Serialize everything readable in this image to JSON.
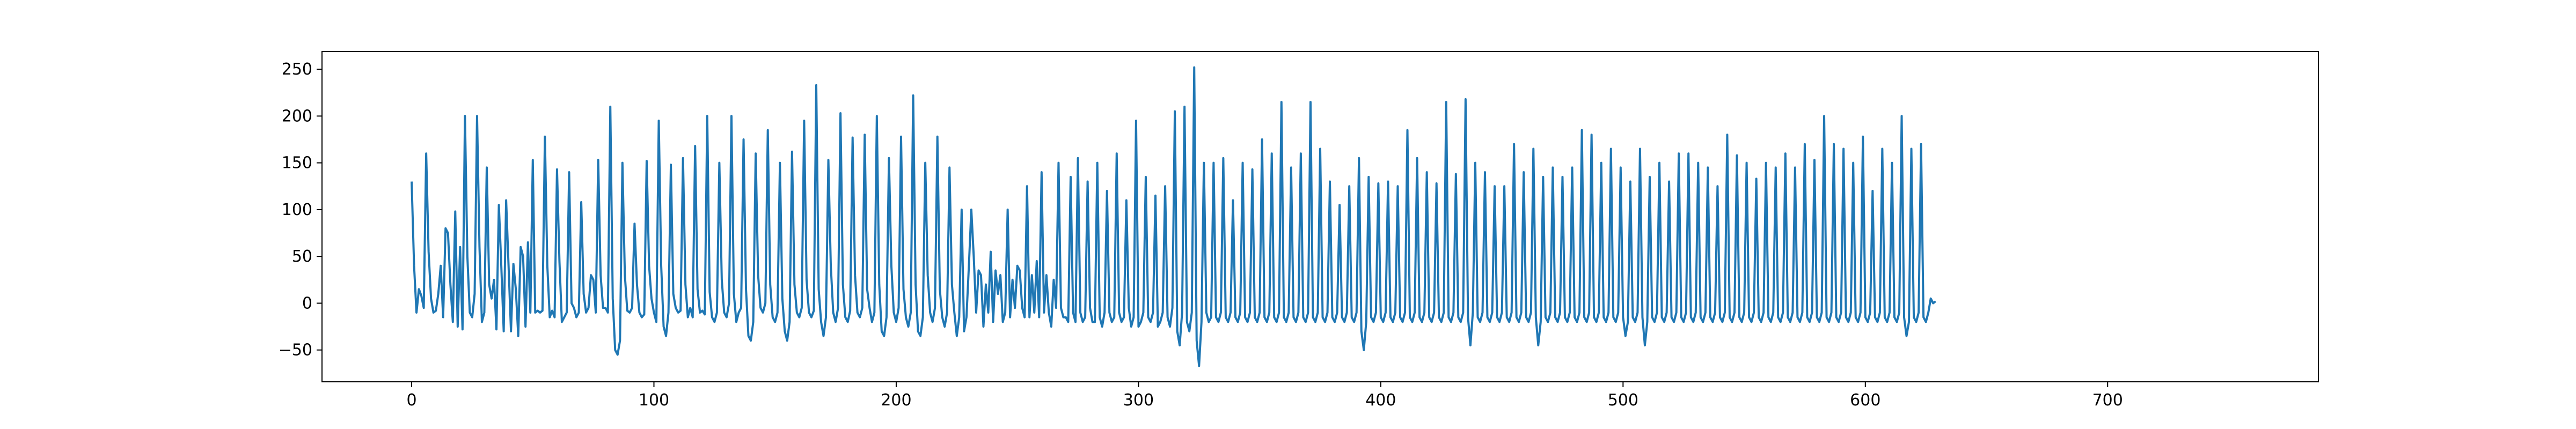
{
  "chart_data": {
    "type": "line",
    "title": "",
    "xlabel": "",
    "ylabel": "",
    "xlim": [
      -37,
      787
    ],
    "ylim": [
      -84,
      269
    ],
    "grid": false,
    "legend": "none",
    "x_ticks": [
      0,
      100,
      200,
      300,
      400,
      500,
      600,
      700
    ],
    "y_ticks": [
      -50,
      0,
      50,
      100,
      150,
      200,
      250
    ],
    "series": [
      {
        "color": "#1f77b4",
        "x_start": 0,
        "x_step": 1,
        "values": [
          130,
          40,
          -10,
          15,
          8,
          -5,
          160,
          55,
          5,
          -10,
          -8,
          10,
          40,
          -15,
          80,
          75,
          20,
          -20,
          98,
          -25,
          60,
          -28,
          200,
          50,
          -10,
          -15,
          10,
          200,
          60,
          -20,
          -10,
          145,
          20,
          5,
          25,
          -28,
          105,
          40,
          -30,
          110,
          40,
          -30,
          42,
          15,
          -35,
          60,
          50,
          -25,
          65,
          -10,
          153,
          -10,
          -8,
          -10,
          -8,
          178,
          40,
          -15,
          -8,
          -15,
          143,
          45,
          -20,
          -15,
          -10,
          140,
          0,
          -5,
          -15,
          -10,
          108,
          10,
          -10,
          -5,
          30,
          25,
          -10,
          153,
          30,
          -5,
          -5,
          -10,
          210,
          5,
          -50,
          -55,
          -40,
          150,
          30,
          -8,
          -10,
          -5,
          85,
          20,
          -10,
          -15,
          -12,
          152,
          40,
          5,
          -10,
          -20,
          195,
          40,
          -25,
          -35,
          -10,
          148,
          10,
          -5,
          -10,
          -8,
          155,
          20,
          -15,
          -5,
          -15,
          168,
          15,
          -10,
          -8,
          -12,
          200,
          12,
          -15,
          -20,
          -10,
          150,
          25,
          -10,
          -15,
          0,
          200,
          10,
          -20,
          -10,
          -5,
          175,
          15,
          -35,
          -40,
          -20,
          160,
          30,
          -5,
          -10,
          0,
          185,
          20,
          -15,
          -20,
          -10,
          150,
          5,
          -30,
          -40,
          -20,
          162,
          20,
          -10,
          -15,
          -5,
          195,
          25,
          -10,
          -15,
          -8,
          233,
          15,
          -20,
          -35,
          -15,
          153,
          40,
          -10,
          -20,
          -5,
          203,
          20,
          -15,
          -20,
          -8,
          177,
          30,
          -10,
          -15,
          -5,
          180,
          15,
          -5,
          -20,
          -10,
          200,
          20,
          -30,
          -35,
          -15,
          155,
          40,
          -10,
          -20,
          -5,
          178,
          15,
          -15,
          -25,
          -10,
          222,
          20,
          -30,
          -35,
          -15,
          150,
          30,
          -10,
          -20,
          -5,
          178,
          15,
          -15,
          -25,
          -10,
          145,
          20,
          -10,
          -35,
          -15,
          100,
          -30,
          -15,
          40,
          100,
          50,
          -10,
          35,
          30,
          -25,
          20,
          -10,
          55,
          -20,
          35,
          10,
          30,
          -20,
          -10,
          100,
          -15,
          25,
          -5,
          40,
          35,
          -5,
          -15,
          125,
          -15,
          30,
          -10,
          45,
          -15,
          140,
          -10,
          30,
          -10,
          -25,
          25,
          -5,
          150,
          -5,
          -15,
          -15,
          -20,
          135,
          -10,
          -20,
          155,
          -10,
          -20,
          -15,
          130,
          -5,
          -20,
          -20,
          150,
          -15,
          -25,
          -10,
          120,
          -10,
          -20,
          -15,
          160,
          -10,
          -20,
          -15,
          110,
          -5,
          -25,
          -15,
          195,
          -25,
          -20,
          -10,
          135,
          -15,
          -20,
          -10,
          115,
          -25,
          -20,
          -10,
          125,
          -15,
          -25,
          -5,
          205,
          -30,
          -45,
          -10,
          210,
          -20,
          -30,
          -10,
          252,
          -40,
          -67,
          -20,
          150,
          -10,
          -20,
          -15,
          150,
          -15,
          -20,
          -10,
          155,
          -15,
          -20,
          -10,
          110,
          -15,
          -20,
          -10,
          150,
          -15,
          -20,
          -10,
          143,
          -15,
          -20,
          -10,
          175,
          -15,
          -20,
          -10,
          160,
          -15,
          -20,
          -10,
          215,
          -15,
          -20,
          -10,
          145,
          -15,
          -20,
          -10,
          160,
          -15,
          -20,
          -10,
          215,
          -15,
          -20,
          -10,
          165,
          -15,
          -20,
          -10,
          130,
          -15,
          -20,
          -10,
          105,
          -15,
          -20,
          -10,
          125,
          -15,
          -20,
          -10,
          155,
          -30,
          -50,
          -20,
          135,
          -15,
          -20,
          -10,
          128,
          -15,
          -20,
          -10,
          130,
          -15,
          -20,
          -10,
          125,
          -15,
          -20,
          -10,
          185,
          -15,
          -20,
          -10,
          155,
          -15,
          -20,
          -10,
          140,
          -15,
          -20,
          -10,
          128,
          -15,
          -20,
          -10,
          215,
          -15,
          -20,
          -10,
          138,
          -15,
          -20,
          -10,
          218,
          -15,
          -45,
          -10,
          150,
          -15,
          -20,
          -10,
          140,
          -15,
          -20,
          -10,
          125,
          -15,
          -20,
          -10,
          125,
          -15,
          -20,
          -10,
          170,
          -15,
          -20,
          -10,
          140,
          -15,
          -20,
          -10,
          165,
          -15,
          -45,
          -20,
          135,
          -15,
          -20,
          -10,
          145,
          -15,
          -20,
          -10,
          135,
          -15,
          -20,
          -10,
          145,
          -15,
          -20,
          -10,
          185,
          -15,
          -20,
          -10,
          180,
          -15,
          -20,
          -10,
          150,
          -15,
          -20,
          -10,
          165,
          -15,
          -20,
          -10,
          145,
          -15,
          -35,
          -20,
          130,
          -15,
          -20,
          -10,
          165,
          -15,
          -45,
          -20,
          135,
          -15,
          -20,
          -10,
          150,
          -15,
          -20,
          -10,
          130,
          -15,
          -20,
          -10,
          160,
          -15,
          -20,
          -10,
          160,
          -15,
          -20,
          -10,
          150,
          -15,
          -20,
          -10,
          145,
          -15,
          -20,
          -10,
          125,
          -15,
          -20,
          -10,
          180,
          -15,
          -20,
          -10,
          158,
          -15,
          -20,
          -10,
          150,
          -15,
          -20,
          -10,
          133,
          -15,
          -20,
          -10,
          150,
          -15,
          -20,
          -10,
          145,
          -15,
          -20,
          -10,
          160,
          -15,
          -20,
          -10,
          145,
          -15,
          -20,
          -10,
          170,
          -15,
          -20,
          -10,
          153,
          -15,
          -20,
          -10,
          200,
          -15,
          -20,
          -10,
          170,
          -15,
          -20,
          -10,
          165,
          -15,
          -20,
          -10,
          150,
          -15,
          -20,
          -10,
          178,
          -15,
          -20,
          -10,
          120,
          -15,
          -20,
          -10,
          165,
          -15,
          -20,
          -10,
          150,
          -15,
          -20,
          -10,
          200,
          -15,
          -35,
          -20,
          165,
          -15,
          -20,
          -10,
          170,
          -15,
          -20,
          -10,
          5,
          0,
          2
        ]
      }
    ]
  }
}
